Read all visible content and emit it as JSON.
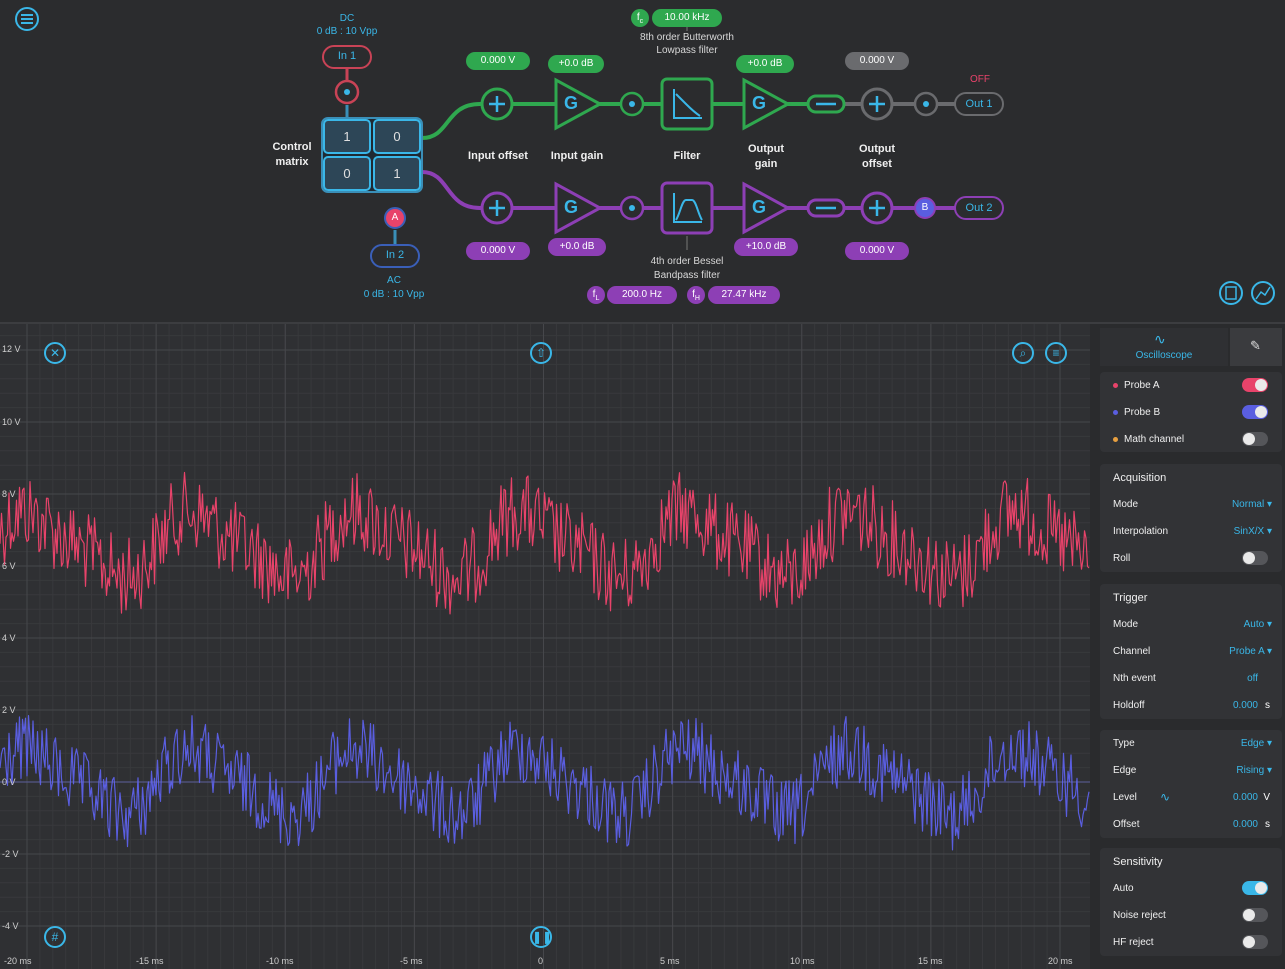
{
  "colors": {
    "accent": "#3ab7e8",
    "green": "#2fa84f",
    "purple": "#8d3fb5",
    "probe_a": "#e8436a",
    "probe_b": "#5a5ee0",
    "math": "#e8a040"
  },
  "inputs": {
    "in1": {
      "label": "In 1",
      "coupling": "DC",
      "range": "0 dB : 10 Vpp"
    },
    "in2": {
      "label": "In 2",
      "coupling": "AC",
      "range": "0 dB : 10 Vpp"
    }
  },
  "matrix": {
    "title_line1": "Control",
    "title_line2": "matrix",
    "cells": [
      "1",
      "0",
      "0",
      "1"
    ],
    "probe_a": "A",
    "probe_b": "B"
  },
  "channel1": {
    "input_offset": "0.000  V",
    "input_gain": "+0.0  dB",
    "filter_freq_symbol": "f",
    "filter_freq_sub": "c",
    "filter_freq": "10.00  kHz",
    "filter_line1": "8th order Butterworth",
    "filter_line2": "Lowpass filter",
    "output_gain": "+0.0  dB",
    "output_offset": "0.000  V",
    "out_label": "Out 1",
    "out_state": "OFF"
  },
  "channel2": {
    "input_offset": "0.000  V",
    "input_gain": "+0.0  dB",
    "filter_line1": "4th order Bessel",
    "filter_line2": "Bandpass filter",
    "fl_sym": "f",
    "fl_sub": "L",
    "fl_value": "200.0  Hz",
    "fh_sym": "f",
    "fh_sub": "H",
    "fh_value": "27.47  kHz",
    "output_gain": "+10.0  dB",
    "output_offset": "0.000  V",
    "out_label": "Out 2"
  },
  "blocks": {
    "input_offset": "Input offset",
    "input_gain": "Input gain",
    "filter": "Filter",
    "output_gain_1": "Output",
    "output_gain_2": "gain",
    "output_offset_1": "Output",
    "output_offset_2": "offset",
    "gain_symbol": "G",
    "add_symbol": "+"
  },
  "scope": {
    "y_labels": [
      "12 V",
      "10 V",
      "8 V",
      "6 V",
      "4 V",
      "2 V",
      "0 V",
      "-2 V",
      "-4 V"
    ],
    "x_labels": [
      "-20 ms",
      "-15 ms",
      "-10 ms",
      "-5 ms",
      "0",
      "5 ms",
      "10 ms",
      "15 ms",
      "20 ms"
    ]
  },
  "sidebar": {
    "tab_oscilloscope": "Oscilloscope",
    "probes": [
      {
        "label": "Probe A",
        "on": true,
        "color": "#e8436a"
      },
      {
        "label": "Probe B",
        "on": true,
        "color": "#5a5ee0"
      },
      {
        "label": "Math channel",
        "on": false,
        "color": "#e8a040"
      }
    ],
    "acquisition": {
      "title": "Acquisition",
      "mode_k": "Mode",
      "mode_v": "Normal",
      "interp_k": "Interpolation",
      "interp_v": "SinX/X",
      "roll_k": "Roll"
    },
    "trigger": {
      "title": "Trigger",
      "mode_k": "Mode",
      "mode_v": "Auto",
      "channel_k": "Channel",
      "channel_v": "Probe A",
      "nth_k": "Nth event",
      "nth_v": "off",
      "holdoff_k": "Holdoff",
      "holdoff_v": "0.000",
      "holdoff_u": "s"
    },
    "trigger2": {
      "type_k": "Type",
      "type_v": "Edge",
      "edge_k": "Edge",
      "edge_v": "Rising",
      "level_k": "Level",
      "level_v": "0.000",
      "level_u": "V",
      "offset_k": "Offset",
      "offset_v": "0.000",
      "offset_u": "s"
    },
    "sensitivity": {
      "title": "Sensitivity",
      "auto_k": "Auto",
      "noise_k": "Noise reject",
      "hf_k": "HF reject"
    }
  }
}
